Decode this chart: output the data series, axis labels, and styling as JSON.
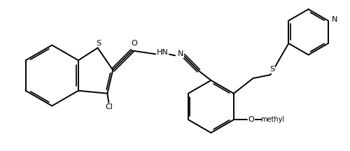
{
  "background": "#ffffff",
  "lc": "#000000",
  "lw": 1.4,
  "figsize": [
    5.0,
    2.16
  ],
  "dpi": 100,
  "atoms": {
    "S_thio": "S",
    "Cl": "Cl",
    "O_carbonyl": "O",
    "HN": "HN",
    "N_hydrazone": "N",
    "S2": "S",
    "O_methoxy": "O",
    "N_pyridine": "N",
    "methyl": "methyl"
  },
  "font_main": 8.0,
  "font_small": 7.0
}
